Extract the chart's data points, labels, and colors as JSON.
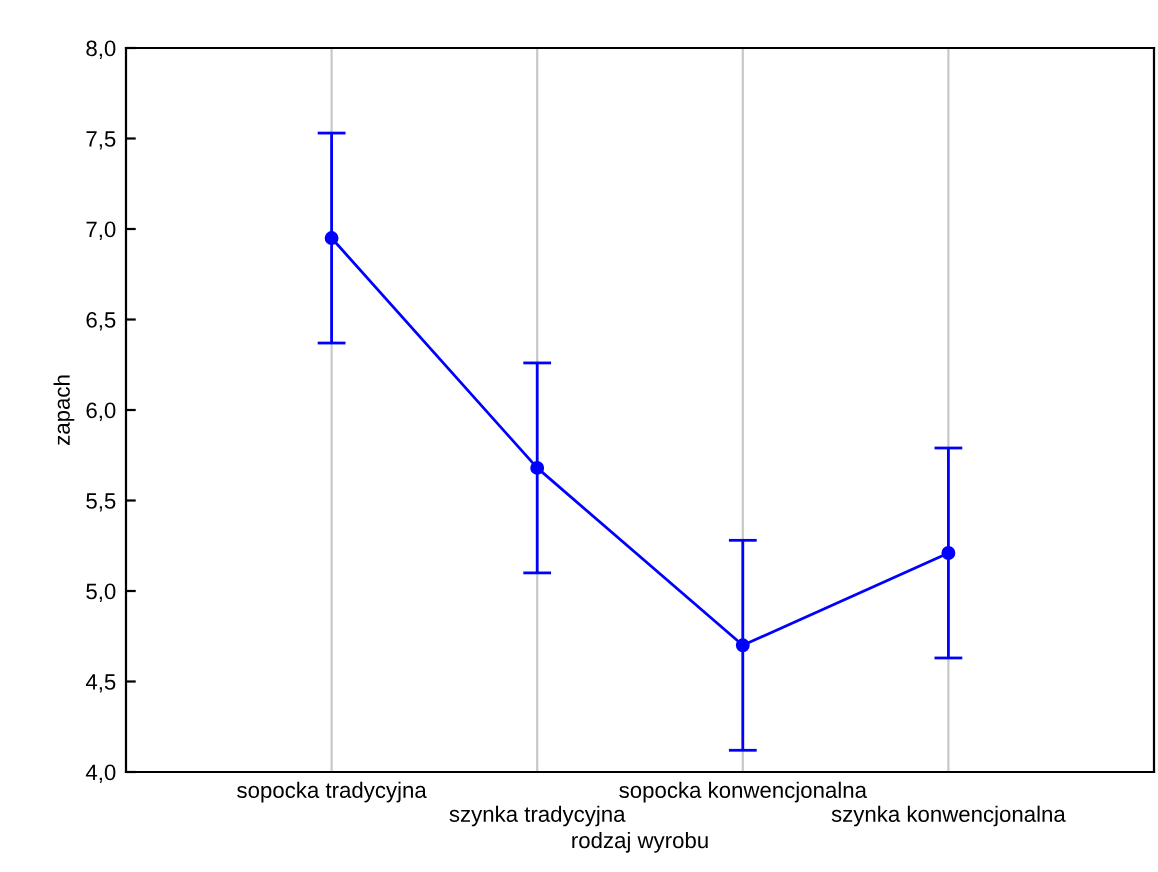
{
  "chart_data": {
    "type": "line",
    "xlabel": "rodzaj wyrobu",
    "ylabel": "zapach",
    "categories": [
      "sopocka tradycyjna",
      "szynka tradycyjna",
      "sopocka konwencjonalna",
      "szynka konwencjonalna"
    ],
    "values": [
      6.95,
      5.68,
      4.7,
      5.21
    ],
    "errors": [
      0.58,
      0.58,
      0.58,
      0.58
    ],
    "color": "#0000ff",
    "marker": "circle",
    "line_style": "solid",
    "grid": "x",
    "ylim": [
      4.0,
      8.0
    ],
    "yticks": [
      {
        "value": 4.0,
        "label": "4,0"
      },
      {
        "value": 4.5,
        "label": "4,5"
      },
      {
        "value": 5.0,
        "label": "5,0"
      },
      {
        "value": 5.5,
        "label": "5,5"
      },
      {
        "value": 6.0,
        "label": "6,0"
      },
      {
        "value": 6.5,
        "label": "6,5"
      },
      {
        "value": 7.0,
        "label": "7,0"
      },
      {
        "value": 7.5,
        "label": "7,5"
      },
      {
        "value": 8.0,
        "label": "8,0"
      }
    ]
  }
}
